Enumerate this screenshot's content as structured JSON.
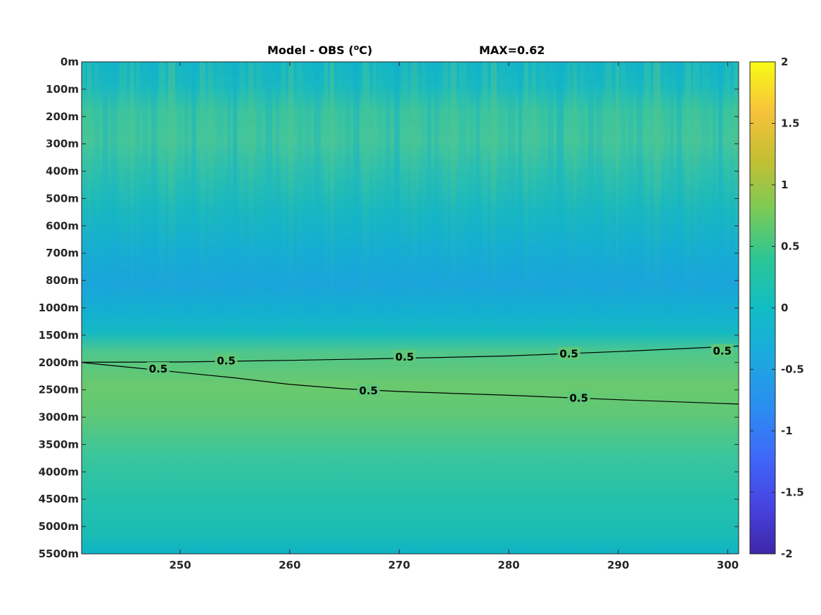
{
  "chart_data": {
    "type": "heatmap",
    "title": "Model - OBS (",
    "title_unit_sup": "o",
    "title_unit": "C)",
    "annotation": "MAX=0.62",
    "x_ticks": [
      250,
      260,
      270,
      280,
      290,
      300
    ],
    "x_range": [
      241,
      301
    ],
    "y_tick_labels": [
      "0m",
      "100m",
      "200m",
      "300m",
      "400m",
      "500m",
      "600m",
      "700m",
      "800m",
      "1000m",
      "1500m",
      "2000m",
      "2500m",
      "3000m",
      "3500m",
      "4000m",
      "4500m",
      "5000m",
      "5500m"
    ],
    "depth_profile": [
      {
        "depth": "0m",
        "value": -0.08
      },
      {
        "depth": "100m",
        "value": 0.02
      },
      {
        "depth": "200m",
        "value": 0.28
      },
      {
        "depth": "300m",
        "value": 0.3
      },
      {
        "depth": "400m",
        "value": 0.25
      },
      {
        "depth": "500m",
        "value": 0.12
      },
      {
        "depth": "600m",
        "value": 0.0
      },
      {
        "depth": "700m",
        "value": -0.12
      },
      {
        "depth": "800m",
        "value": -0.18
      },
      {
        "depth": "1000m",
        "value": -0.05
      },
      {
        "depth": "1500m",
        "value": 0.4
      },
      {
        "depth": "2000m",
        "value": 0.52
      },
      {
        "depth": "2500m",
        "value": 0.5
      },
      {
        "depth": "3000m",
        "value": 0.42
      },
      {
        "depth": "3500m",
        "value": 0.33
      },
      {
        "depth": "4000m",
        "value": 0.28
      },
      {
        "depth": "4500m",
        "value": 0.22
      },
      {
        "depth": "5000m",
        "value": 0.12
      },
      {
        "depth": "5500m",
        "value": 0.0
      }
    ],
    "colorbar": {
      "min": -2,
      "max": 2,
      "ticks": [
        "2",
        "1.5",
        "1",
        "0.5",
        "0",
        "-0.5",
        "-1",
        "-1.5",
        "-2"
      ],
      "colormap": [
        "#3e26a8",
        "#4744e2",
        "#3e6af9",
        "#2b8ef0",
        "#1ca9df",
        "#10bdc4",
        "#2cc695",
        "#7bcb56",
        "#c4bf32",
        "#f7c33b",
        "#f9fb15"
      ]
    },
    "contours": [
      {
        "label": "0.5",
        "level": 0.5,
        "points": [
          [
            241,
            1995
          ],
          [
            250,
            1990
          ],
          [
            260,
            1960
          ],
          [
            270,
            1925
          ],
          [
            280,
            1880
          ],
          [
            290,
            1800
          ],
          [
            301,
            1700
          ]
        ]
      },
      {
        "label": "0.5",
        "level": 0.5,
        "points": [
          [
            241,
            2000
          ],
          [
            245,
            2080
          ],
          [
            250,
            2180
          ],
          [
            255,
            2280
          ],
          [
            260,
            2400
          ],
          [
            265,
            2480
          ],
          [
            270,
            2530
          ],
          [
            280,
            2600
          ],
          [
            290,
            2680
          ],
          [
            301,
            2760
          ]
        ]
      }
    ],
    "contour_labels": [
      {
        "text": "0.5",
        "x": 248,
        "depth": 2120
      },
      {
        "text": "0.5",
        "x": 254.2,
        "depth": 1970
      },
      {
        "text": "0.5",
        "x": 267.2,
        "depth": 2520
      },
      {
        "text": "0.5",
        "x": 270.5,
        "depth": 1900
      },
      {
        "text": "0.5",
        "x": 285.5,
        "depth": 1845
      },
      {
        "text": "0.5",
        "x": 286.4,
        "depth": 2650
      },
      {
        "text": "0.5",
        "x": 299.5,
        "depth": 1790
      }
    ],
    "xlabel": "",
    "ylabel": "",
    "grid": false
  }
}
